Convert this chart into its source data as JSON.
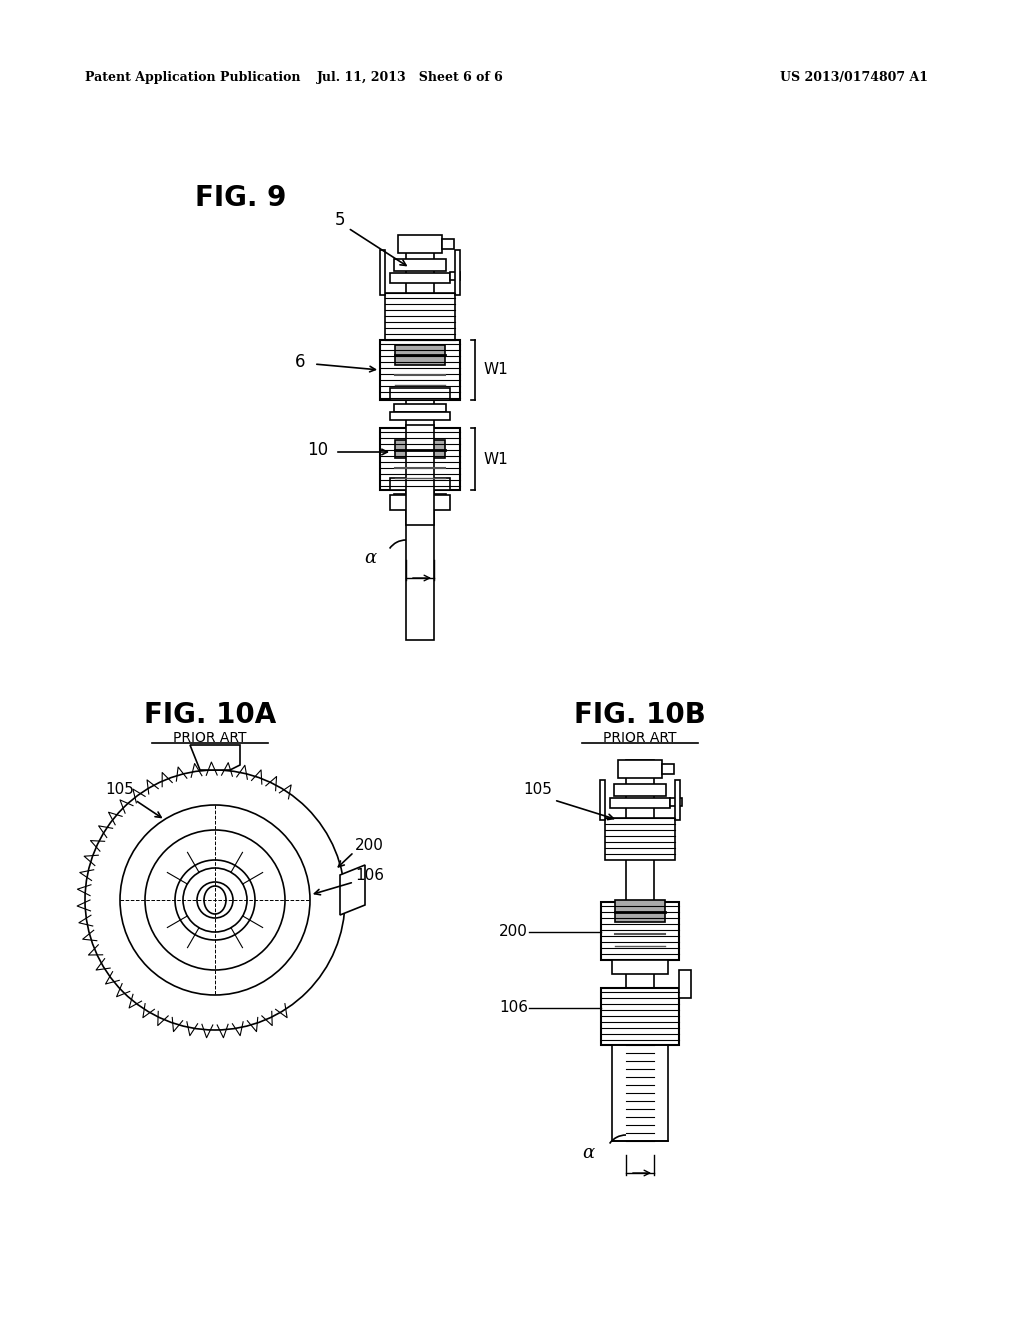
{
  "bg_color": "#ffffff",
  "header_left": "Patent Application Publication",
  "header_mid": "Jul. 11, 2013   Sheet 6 of 6",
  "header_right": "US 2013/0174807 A1",
  "fig9_label": "FIG. 9",
  "fig10a_label": "FIG. 10A",
  "fig10a_sub": "PRIOR ART",
  "fig10b_label": "FIG. 10B",
  "fig10b_sub": "PRIOR ART"
}
